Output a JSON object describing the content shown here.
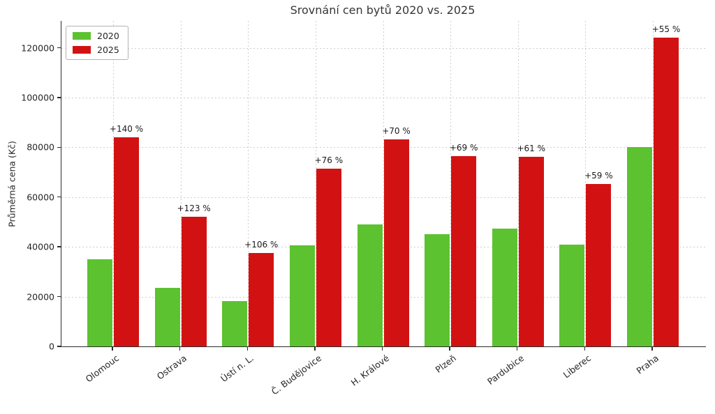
{
  "chart_data": {
    "type": "bar",
    "title": "Srovnání cen bytů 2020 vs. 2025",
    "xlabel": "",
    "ylabel": "Průměrná cena (Kč)",
    "categories": [
      "Olomouc",
      "Ostrava",
      "Ústí n. L.",
      "Č. Budějovice",
      "H. Králové",
      "Plzeň",
      "Pardubice",
      "Liberec",
      "Praha"
    ],
    "series": [
      {
        "name": "2020",
        "color": "#5cc230",
        "values": [
          35000,
          23400,
          18200,
          40500,
          49000,
          45200,
          47300,
          41000,
          80000
        ]
      },
      {
        "name": "2025",
        "color": "#d21212",
        "values": [
          84000,
          52200,
          37500,
          71300,
          83300,
          76400,
          76200,
          65200,
          124000
        ]
      }
    ],
    "annotations": [
      "+140 %",
      "+123 %",
      "+106 %",
      "+76 %",
      "+70 %",
      "+69 %",
      "+61 %",
      "+59 %",
      "+55 %"
    ],
    "yticks": [
      0,
      20000,
      40000,
      60000,
      80000,
      100000,
      120000
    ],
    "ylim": [
      0,
      130800
    ],
    "grid": true,
    "grid_style": "dotted",
    "legend_position": "upper left",
    "legend_entries": [
      "2020",
      "2025"
    ]
  },
  "colors": {
    "background": "#ffffff",
    "grid": "#cecece",
    "axis": "#2b2b2b",
    "text": "#262626",
    "series_2020": "#5cc230",
    "series_2025": "#d21212"
  }
}
